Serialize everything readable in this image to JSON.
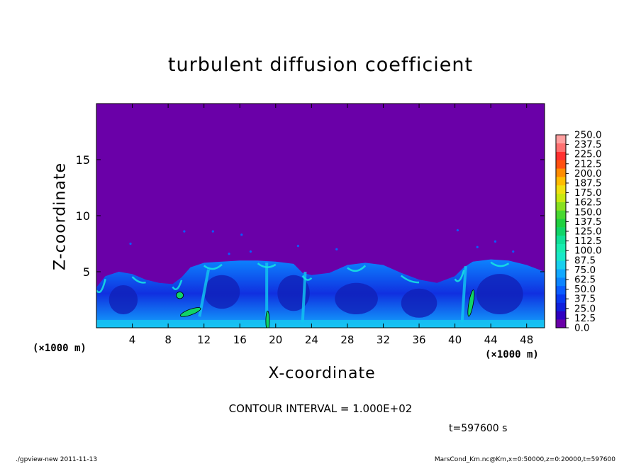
{
  "chart_data": {
    "type": "heatmap",
    "title": "turbulent diffusion coefficient",
    "xlabel": "X-coordinate",
    "ylabel": "Z-coordinate",
    "x_unit_label": "(×1000 m)",
    "xlim": [
      0,
      50
    ],
    "ylim": [
      0,
      20
    ],
    "x_ticks": [
      4,
      8,
      12,
      16,
      20,
      24,
      28,
      32,
      36,
      40,
      44,
      48
    ],
    "y_ticks": [
      5,
      10,
      15
    ],
    "colorbar_levels": [
      "0.0",
      "12.5",
      "25.0",
      "37.5",
      "50.0",
      "62.5",
      "75.0",
      "87.5",
      "100.0",
      "112.5",
      "125.0",
      "137.5",
      "150.0",
      "162.5",
      "175.0",
      "187.5",
      "200.0",
      "212.5",
      "225.0",
      "237.5",
      "250.0"
    ],
    "colorbar_colors": [
      "#6a00a8",
      "#3000c0",
      "#1020dc",
      "#0838f0",
      "#0a5cff",
      "#0c84ff",
      "#12a8ff",
      "#18d0ee",
      "#18e8c8",
      "#18ecb0",
      "#10e098",
      "#10d468",
      "#20d040",
      "#48d830",
      "#88e020",
      "#c8e810",
      "#f0e010",
      "#ffbc00",
      "#ff8c00",
      "#ff5010",
      "#ff3030",
      "#ff7070",
      "#ffa0a0"
    ],
    "background_color": "#6a00a8",
    "contour_interval": "CONTOUR INTERVAL = 1.000E+02",
    "time_label": "t=597600 s",
    "description_hidden": true
  },
  "footer": {
    "left": "./gpview-new  2011-11-13",
    "right": "MarsCond_Km.nc@Km,x=0:50000,z=0:20000,t=597600"
  }
}
